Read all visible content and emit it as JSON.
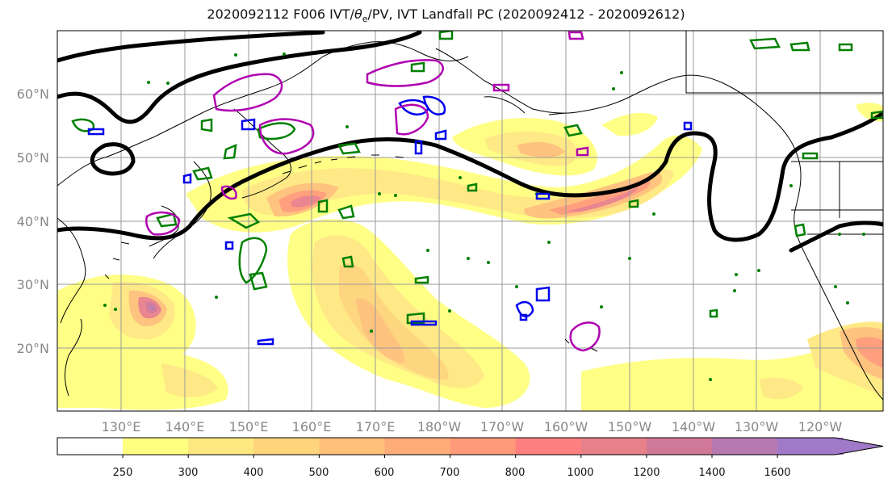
{
  "title": {
    "prefix": "2020092112 F006 IVT/",
    "theta_symbol": "θ",
    "theta_sub": "e",
    "suffix": "/PV, IVT Landfall PC (2020092412 - 2020092612)"
  },
  "map": {
    "lat_labels": [
      "60°N",
      "50°N",
      "40°N",
      "30°N",
      "20°N"
    ],
    "lon_labels": [
      "130°E",
      "140°E",
      "150°E",
      "160°E",
      "170°E",
      "180°W",
      "170°W",
      "160°W",
      "150°W",
      "140°W",
      "130°W",
      "120°W"
    ],
    "extent": {
      "lon_min": 120,
      "lon_max": 250,
      "lat_min": 10,
      "lat_max": 70
    },
    "grid": true,
    "contour_colors": {
      "theta_e": "#000000",
      "pv_positive": "#008000",
      "pv_negative": "#0000ee",
      "ivt_pc": "#b000b0"
    }
  },
  "colorbar": {
    "ticks": [
      "250",
      "300",
      "400",
      "500",
      "600",
      "700",
      "800",
      "1000",
      "1200",
      "1400",
      "1600"
    ],
    "colors": [
      "#ffffff",
      "#ffff80",
      "#ffe880",
      "#ffd47a",
      "#ffc07a",
      "#ffad78",
      "#ff9a78",
      "#ff8080",
      "#e8808a",
      "#d07898",
      "#b878b0",
      "#a07ac8"
    ],
    "extend": "max"
  }
}
